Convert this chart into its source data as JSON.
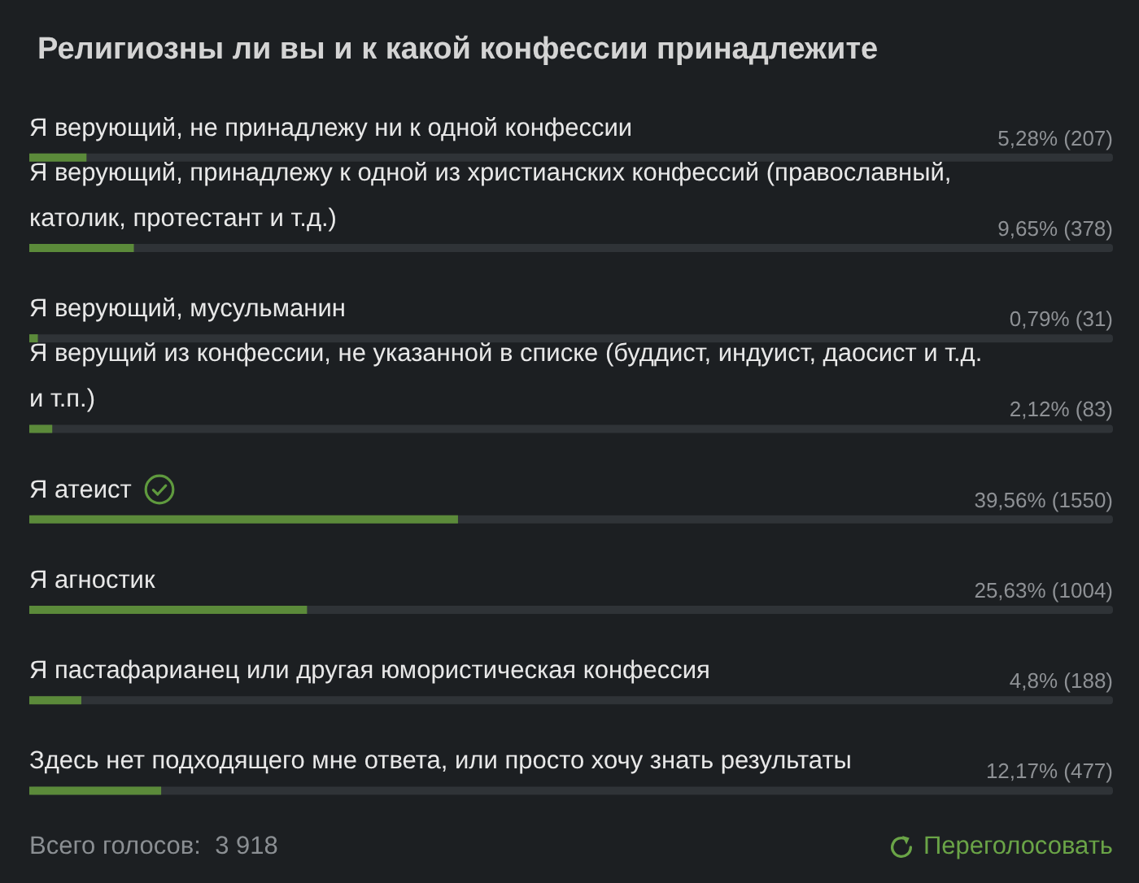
{
  "chart_data": {
    "type": "bar",
    "orientation": "horizontal",
    "title": "Религиозны ли вы и к какой конфессии принадлежите",
    "categories": [
      "Я верующий, не принадлежу ни к одной конфессии",
      "Я верующий, принадлежу к одной из христианских конфессий (православный, католик, протестант и т.д.)",
      "Я верующий, мусульманин",
      "Я верущий из конфессии, не указанной в списке (буддист, индуист, даосист и т.д. и т.п.)",
      "Я атеист",
      "Я агностик",
      "Я пастафарианец или другая юмористическая конфессия",
      "Здесь нет подходящего мне ответа, или просто хочу знать результаты"
    ],
    "values": [
      5.28,
      9.65,
      0.79,
      2.12,
      39.56,
      25.63,
      4.8,
      12.17
    ],
    "value_labels": [
      "5,28% (207)",
      "9,65% (378)",
      "0,79% (31)",
      "2,12% (83)",
      "39,56% (1550)",
      "25,63% (1004)",
      "4,8% (188)",
      "12,17% (477)"
    ],
    "color": "#5b8a3a",
    "xlim": [
      0,
      100
    ],
    "tick_labels": "y",
    "grid": false,
    "annotations": [
      "Всего голосов:  3 918",
      "Переголосовать"
    ]
  }
}
